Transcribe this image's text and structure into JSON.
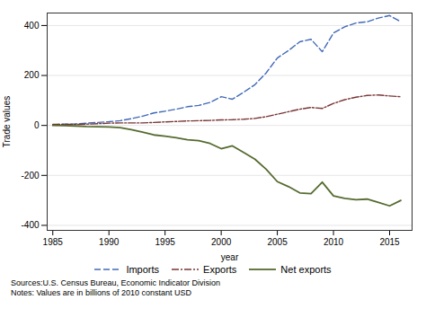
{
  "chart_data": {
    "type": "line",
    "x": [
      1985,
      1986,
      1987,
      1988,
      1989,
      1990,
      1991,
      1992,
      1993,
      1994,
      1995,
      1996,
      1997,
      1998,
      1999,
      2000,
      2001,
      2002,
      2003,
      2004,
      2005,
      2006,
      2007,
      2008,
      2009,
      2010,
      2011,
      2012,
      2013,
      2014,
      2015,
      2016
    ],
    "series": [
      {
        "name": "Imports",
        "color": "#4169b8",
        "line_style": "dashed",
        "values": [
          3,
          5,
          6,
          9,
          12,
          15,
          19,
          27,
          37,
          50,
          57,
          65,
          75,
          80,
          92,
          115,
          105,
          133,
          163,
          210,
          270,
          300,
          335,
          345,
          295,
          370,
          395,
          410,
          415,
          430,
          440,
          415
        ]
      },
      {
        "name": "Exports",
        "color": "#7a3535",
        "line_style": "dashdot",
        "values": [
          4,
          4,
          4,
          5,
          7,
          9,
          10,
          10,
          10,
          12,
          14,
          16,
          18,
          19,
          20,
          22,
          23,
          25,
          28,
          35,
          45,
          55,
          65,
          72,
          68,
          88,
          103,
          113,
          120,
          122,
          118,
          115
        ]
      },
      {
        "name": "Net exports",
        "color": "#556b2f",
        "line_style": "solid",
        "values": [
          0,
          -1,
          -2,
          -4,
          -5,
          -6,
          -9,
          -17,
          -27,
          -38,
          -43,
          -49,
          -57,
          -61,
          -72,
          -93,
          -82,
          -108,
          -135,
          -175,
          -225,
          -245,
          -270,
          -273,
          -227,
          -282,
          -292,
          -297,
          -295,
          -308,
          -322,
          -300
        ]
      }
    ],
    "xlabel": "year",
    "ylabel": "Trade values",
    "xlim": [
      1984.5,
      2017
    ],
    "ylim": [
      -420,
      450
    ],
    "xticks": [
      1985,
      1990,
      1995,
      2000,
      2005,
      2010,
      2015
    ],
    "yticks": [
      -400,
      -200,
      0,
      200,
      400
    ],
    "grid": true,
    "legend": "bottom",
    "caption": "Sources:U.S. Census Bureau, Economic Indicator Division\nNotes: Values are in billions of 2010 constant USD"
  }
}
